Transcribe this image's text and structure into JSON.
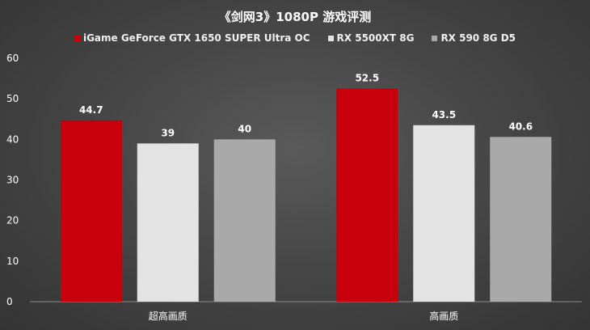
{
  "chart_data": {
    "type": "bar",
    "title": "《剑网3》1080P 游戏评测",
    "categories": [
      "超高画质",
      "高画质"
    ],
    "series": [
      {
        "name": "iGame GeForce GTX 1650 SUPER Ultra OC",
        "values": [
          44.7,
          52.5
        ],
        "color": "#c8000b"
      },
      {
        "name": "RX 5500XT 8G",
        "values": [
          39,
          43.5
        ],
        "color": "#e3e3e3"
      },
      {
        "name": "RX 590 8G D5",
        "values": [
          40,
          40.6
        ],
        "color": "#a9a9a9"
      }
    ],
    "ylim": [
      0,
      60
    ],
    "yticks": [
      0,
      10,
      20,
      30,
      40,
      50,
      60
    ],
    "data_labels": [
      [
        "44.7",
        "52.5"
      ],
      [
        "39",
        "43.5"
      ],
      [
        "40",
        "40.6"
      ]
    ],
    "legend_position": "top",
    "grid": false,
    "xlabel": "",
    "ylabel": ""
  }
}
